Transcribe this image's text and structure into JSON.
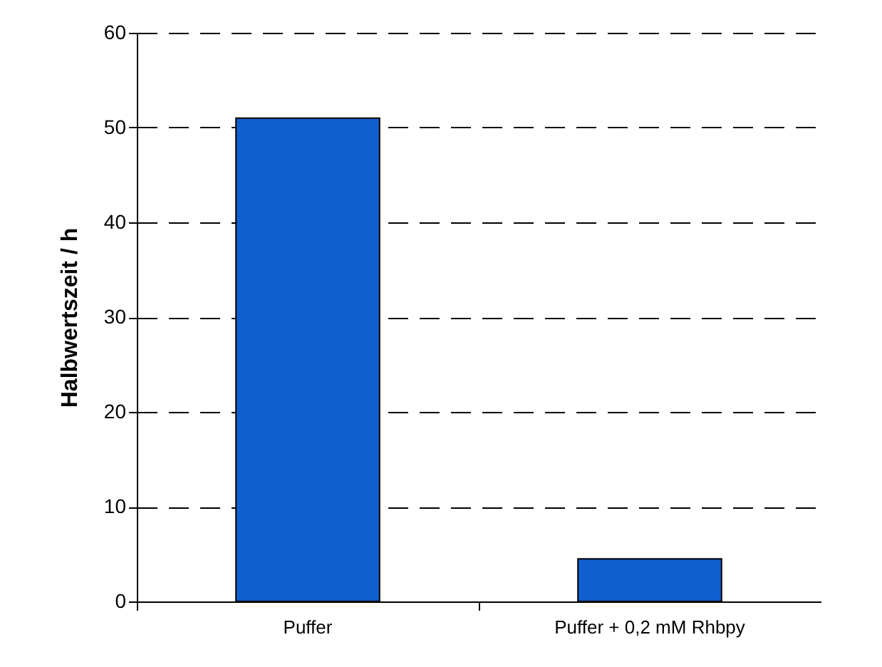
{
  "chart_data": {
    "type": "bar",
    "ylabel": "Halbwertszeit / h",
    "categories": [
      "Puffer",
      "Puffer + 0,2 mM Rhbpy"
    ],
    "series": [
      {
        "color": "#0f5fd0",
        "values": [
          51,
          4.5
        ]
      }
    ],
    "ylim": [
      0,
      60
    ],
    "yticks": [
      0,
      10,
      20,
      30,
      40,
      50,
      60
    ],
    "grid": "y"
  }
}
